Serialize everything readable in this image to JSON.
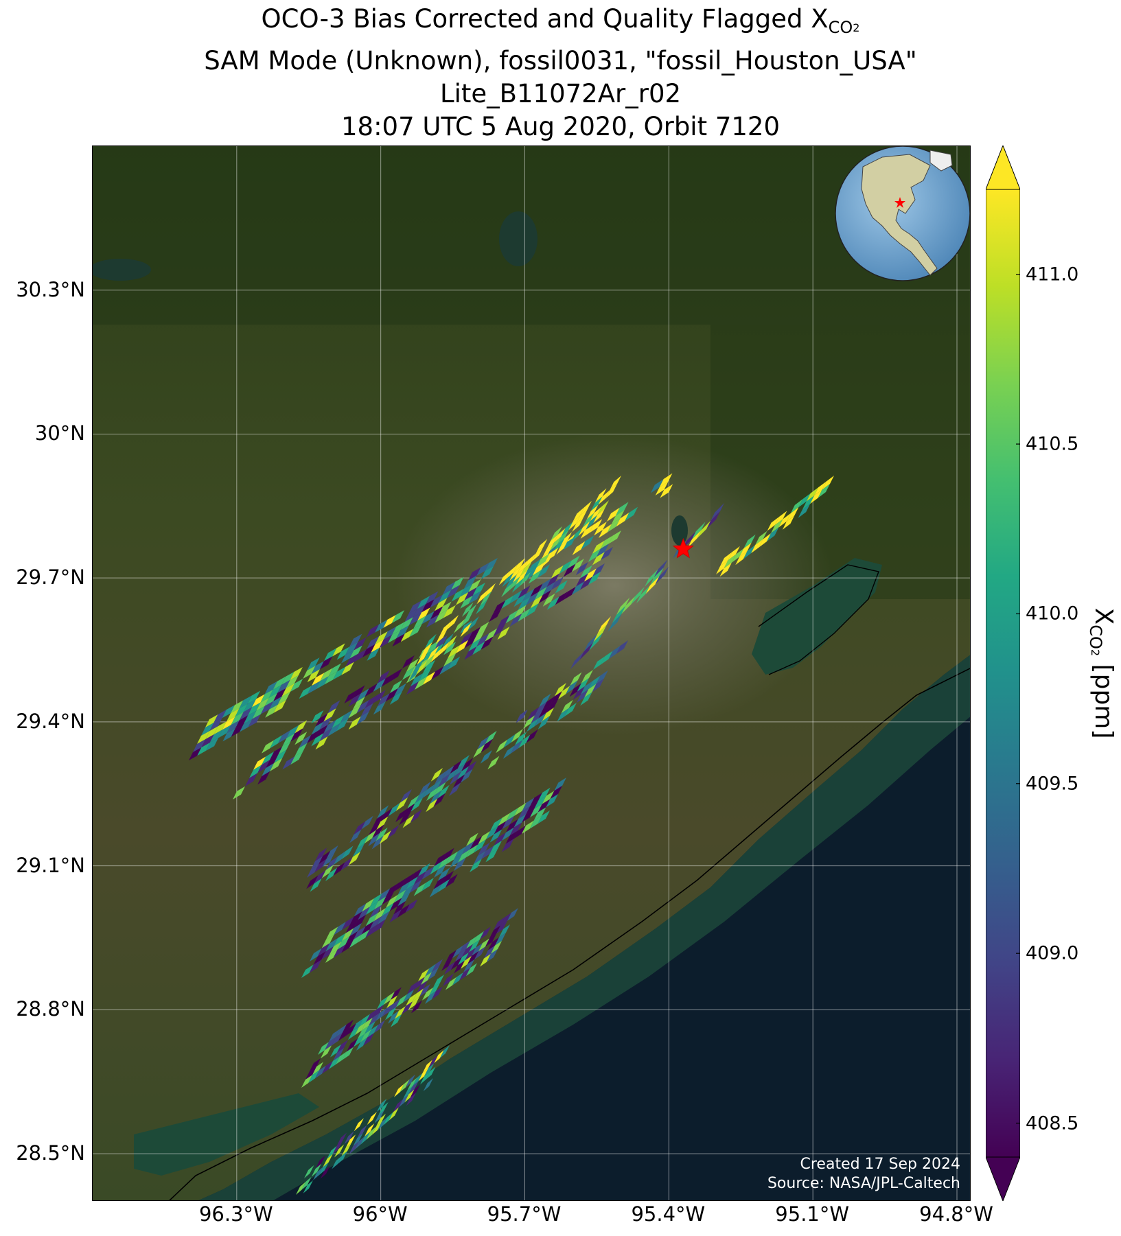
{
  "title": {
    "line1_prefix": "OCO-3 Bias Corrected and Quality Flagged X",
    "line1_sub": "CO",
    "line1_sub2": "2",
    "line2": "SAM Mode (Unknown), fossil0031, \"fossil_Houston_USA\"",
    "line3": "Lite_B11072Ar_r02",
    "line4": "18:07 UTC 5 Aug 2020, Orbit 7120"
  },
  "map": {
    "lat_range": [
      28.4,
      30.6
    ],
    "lon_range": [
      -96.6,
      -94.77
    ],
    "lat_ticks": [
      {
        "value": 30.3,
        "label": "30.3°N"
      },
      {
        "value": 30.0,
        "label": "30°N"
      },
      {
        "value": 29.7,
        "label": "29.7°N"
      },
      {
        "value": 29.4,
        "label": "29.4°N"
      },
      {
        "value": 29.1,
        "label": "29.1°N"
      },
      {
        "value": 28.8,
        "label": "28.8°N"
      },
      {
        "value": 28.5,
        "label": "28.5°N"
      }
    ],
    "lon_ticks": [
      {
        "value": -96.3,
        "label": "96.3°W"
      },
      {
        "value": -96.0,
        "label": "96°W"
      },
      {
        "value": -95.7,
        "label": "95.7°W"
      },
      {
        "value": -95.4,
        "label": "95.4°W"
      },
      {
        "value": -95.1,
        "label": "95.1°W"
      },
      {
        "value": -94.8,
        "label": "94.8°W"
      }
    ],
    "target": {
      "name": "fossil_Houston_USA",
      "lat": 29.76,
      "lon": -95.37,
      "marker_color": "#ff0000"
    },
    "basemap": "satellite imagery",
    "inset": "globe-inset"
  },
  "credits": {
    "created": "Created 17 Sep 2024",
    "source": "Source: NASA/JPL-Caltech"
  },
  "colorbar": {
    "colormap": "viridis",
    "min": 408.4,
    "max": 411.25,
    "extend": "both",
    "ticks": [
      411.0,
      410.5,
      410.0,
      409.5,
      409.0,
      408.5
    ],
    "tick_labels": [
      "411.0",
      "410.5",
      "410.0",
      "409.5",
      "409.0",
      "408.5"
    ],
    "label_prefix": "X",
    "label_sub": "CO",
    "label_sub2": "2",
    "label_suffix": " [ppm]"
  }
}
